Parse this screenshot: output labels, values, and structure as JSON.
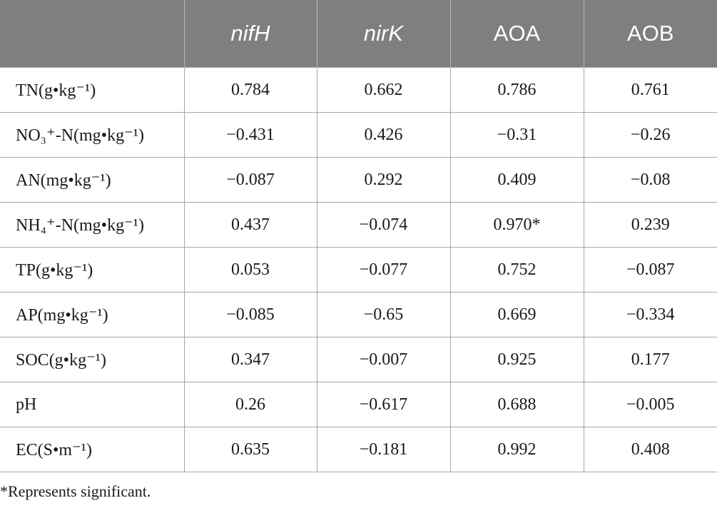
{
  "table": {
    "headers": [
      "",
      "nifH",
      "nirK",
      "AOA",
      "AOB"
    ],
    "rows": [
      {
        "label": "TN(g•kg⁻¹)",
        "values": [
          "0.784",
          "0.662",
          "0.786",
          "0.761"
        ]
      },
      {
        "label": "NO₃⁺-N(mg•kg⁻¹)",
        "values": [
          "−0.431",
          "0.426",
          "−0.31",
          "−0.26"
        ]
      },
      {
        "label": "AN(mg•kg⁻¹)",
        "values": [
          "−0.087",
          "0.292",
          "0.409",
          "−0.08"
        ]
      },
      {
        "label": "NH₄⁺-N(mg•kg⁻¹)",
        "values": [
          "0.437",
          "−0.074",
          "0.970*",
          "0.239"
        ]
      },
      {
        "label": "TP(g•kg⁻¹)",
        "values": [
          "0.053",
          "−0.077",
          "0.752",
          "−0.087"
        ]
      },
      {
        "label": "AP(mg•kg⁻¹)",
        "values": [
          "−0.085",
          "−0.65",
          "0.669",
          "−0.334"
        ]
      },
      {
        "label": "SOC(g•kg⁻¹)",
        "values": [
          "0.347",
          "−0.007",
          "0.925",
          "0.177"
        ]
      },
      {
        "label": "pH",
        "values": [
          "0.26",
          "−0.617",
          "0.688",
          "−0.005"
        ]
      },
      {
        "label": "EC(S•m⁻¹)",
        "values": [
          "0.635",
          "−0.181",
          "0.992",
          "0.408"
        ]
      }
    ]
  },
  "footnote": "*Represents significant.",
  "colors": {
    "header_bg": "#7f7f7f",
    "header_text": "#ffffff",
    "grid": "#a6a6a6"
  }
}
